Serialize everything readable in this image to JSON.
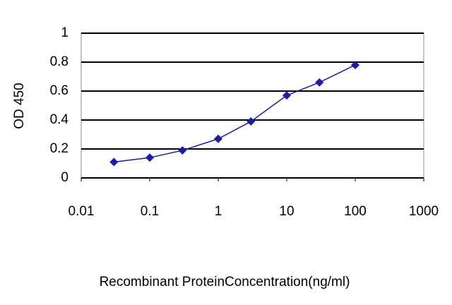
{
  "chart_data": {
    "type": "line",
    "x_label": "Recombinant ProteinConcentration(ng/ml)",
    "y_label": "OD 450",
    "xscale": "log",
    "x": [
      0.03,
      0.1,
      0.3,
      1,
      3,
      10,
      30,
      100
    ],
    "series": [
      {
        "name": "OD 450",
        "color": "#1c1ca8",
        "values": [
          0.11,
          0.14,
          0.19,
          0.27,
          0.39,
          0.57,
          0.66,
          0.78
        ]
      }
    ],
    "xlim": [
      0.01,
      1000
    ],
    "xticks": [
      0.01,
      0.1,
      1,
      10,
      100,
      1000
    ],
    "ylim": [
      0,
      1
    ],
    "yticks": [
      0,
      0.2,
      0.4,
      0.6,
      0.8,
      1
    ],
    "grid": true
  }
}
